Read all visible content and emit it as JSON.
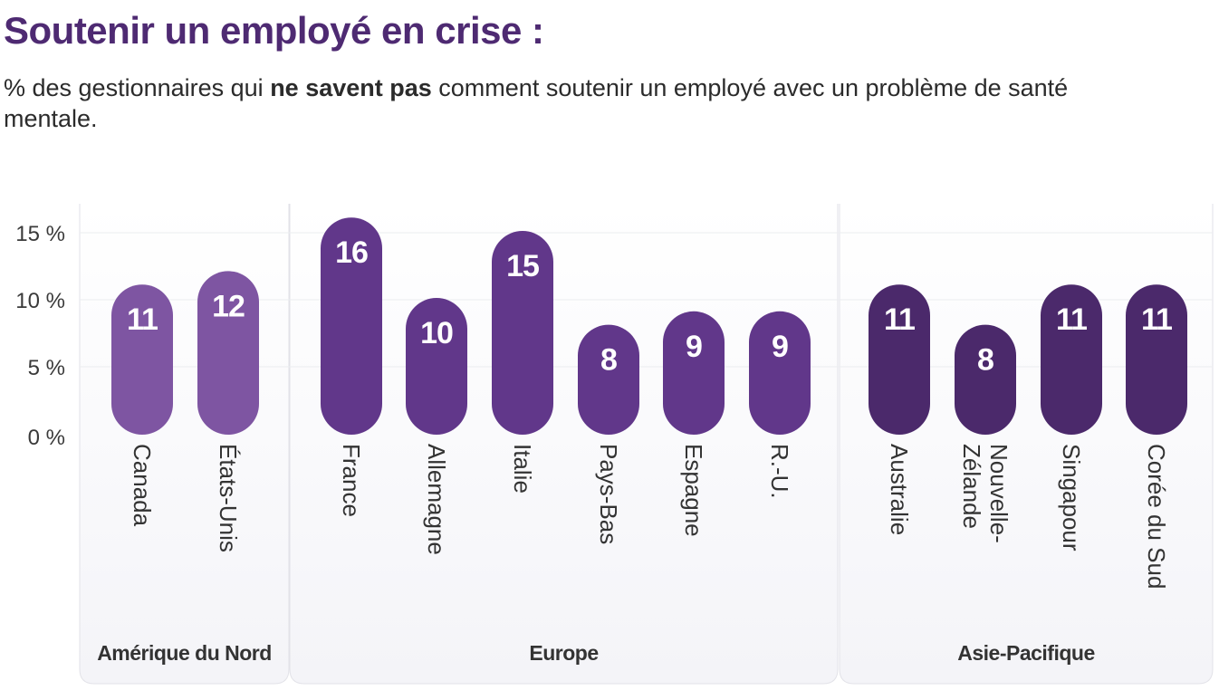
{
  "chart_data": {
    "type": "bar",
    "title": "Soutenir un employé en crise :",
    "subtitle_prefix": "% des gestionnaires qui ",
    "subtitle_bold": "ne savent pas",
    "subtitle_suffix": " comment soutenir un employé avec un problème de santé mentale.",
    "ylim": [
      0,
      17
    ],
    "yticks": [
      0,
      5,
      10,
      15
    ],
    "ytick_labels": [
      "0 %",
      "5 %",
      "10 %",
      "15 %"
    ],
    "grid": true,
    "groups": [
      {
        "name": "Amérique du Nord",
        "color": "#7E55A2",
        "categories": [
          [
            "Canada"
          ],
          [
            "États-Unis"
          ]
        ],
        "values": [
          11,
          12
        ]
      },
      {
        "name": "Europe",
        "color": "#61378A",
        "categories": [
          [
            "France"
          ],
          [
            "Allemagne"
          ],
          [
            "Italie"
          ],
          [
            "Pays-Bas"
          ],
          [
            "Espagne"
          ],
          [
            "R.-U."
          ]
        ],
        "values": [
          16,
          10,
          15,
          8,
          9,
          9
        ]
      },
      {
        "name": "Asie-Pacifique",
        "color": "#4B296B",
        "categories": [
          [
            "Australie"
          ],
          [
            "Nouvelle-",
            "Zélande"
          ],
          [
            "Singapour"
          ],
          [
            "Corée du Sud"
          ]
        ],
        "values": [
          11,
          8,
          11,
          11
        ]
      }
    ]
  }
}
